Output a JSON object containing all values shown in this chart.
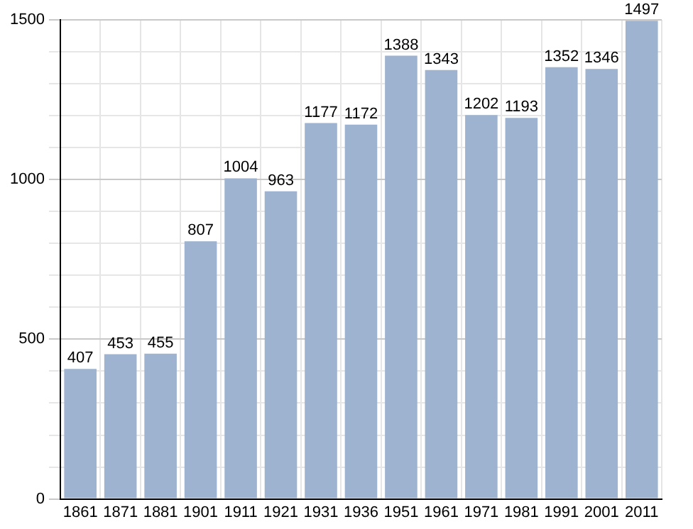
{
  "chart_data": {
    "type": "bar",
    "categories": [
      "1861",
      "1871",
      "1881",
      "1901",
      "1911",
      "1921",
      "1931",
      "1936",
      "1951",
      "1961",
      "1971",
      "1981",
      "1991",
      "2001",
      "2011"
    ],
    "values": [
      407,
      453,
      455,
      807,
      1004,
      963,
      1177,
      1172,
      1388,
      1343,
      1202,
      1193,
      1352,
      1346,
      1497
    ],
    "color": "#9db3cf",
    "ylim": [
      0,
      1500
    ],
    "yticks": [
      0,
      {
        "value": 100,
        "label": null
      },
      {
        "value": 200,
        "label": null
      },
      {
        "value": 300,
        "label": null
      },
      {
        "value": 400,
        "label": null
      },
      500,
      {
        "value": 600,
        "label": null
      },
      {
        "value": 700,
        "label": null
      },
      {
        "value": 800,
        "label": null
      },
      {
        "value": 900,
        "label": null
      },
      1000,
      {
        "value": 1100,
        "label": null
      },
      {
        "value": 1200,
        "label": null
      },
      {
        "value": 1300,
        "label": null
      },
      {
        "value": 1400,
        "label": null
      },
      1500
    ],
    "grid": true,
    "data_labels": true
  }
}
